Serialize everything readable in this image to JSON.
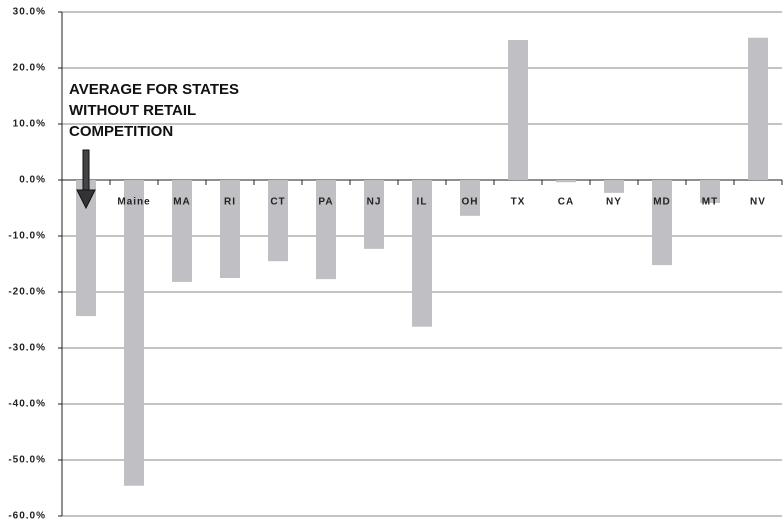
{
  "chart_data": {
    "type": "bar",
    "annotation": [
      "AVERAGE FOR STATES",
      "WITHOUT RETAIL",
      "COMPETITION"
    ],
    "categories": [
      null,
      "Maine",
      "MA",
      "RI",
      "CT",
      "PA",
      "NJ",
      "IL",
      "OH",
      "TX",
      "CA",
      "NY",
      "MD",
      "MT",
      "NV"
    ],
    "values": [
      -24.3,
      -54.6,
      -18.2,
      -17.5,
      -14.5,
      -17.7,
      -12.3,
      -26.2,
      -6.4,
      25.0,
      -0.4,
      -2.3,
      -15.2,
      -4.1,
      25.4
    ],
    "color": "#c0c0c4",
    "ylim": [
      -60,
      30
    ],
    "yticks": [
      {
        "value": -60,
        "label": "-60.0%"
      },
      {
        "value": -50,
        "label": "-50.0%"
      },
      {
        "value": -40,
        "label": "-40.0%"
      },
      {
        "value": -30,
        "label": "-30.0%"
      },
      {
        "value": -20,
        "label": "-20.0%"
      },
      {
        "value": -10,
        "label": "-10.0%"
      },
      {
        "value": 0,
        "label": "0.0%"
      },
      {
        "value": 10,
        "label": "10.0%"
      },
      {
        "value": 20,
        "label": "20.0%"
      },
      {
        "value": 30,
        "label": "30.0%"
      }
    ],
    "grid": true
  }
}
